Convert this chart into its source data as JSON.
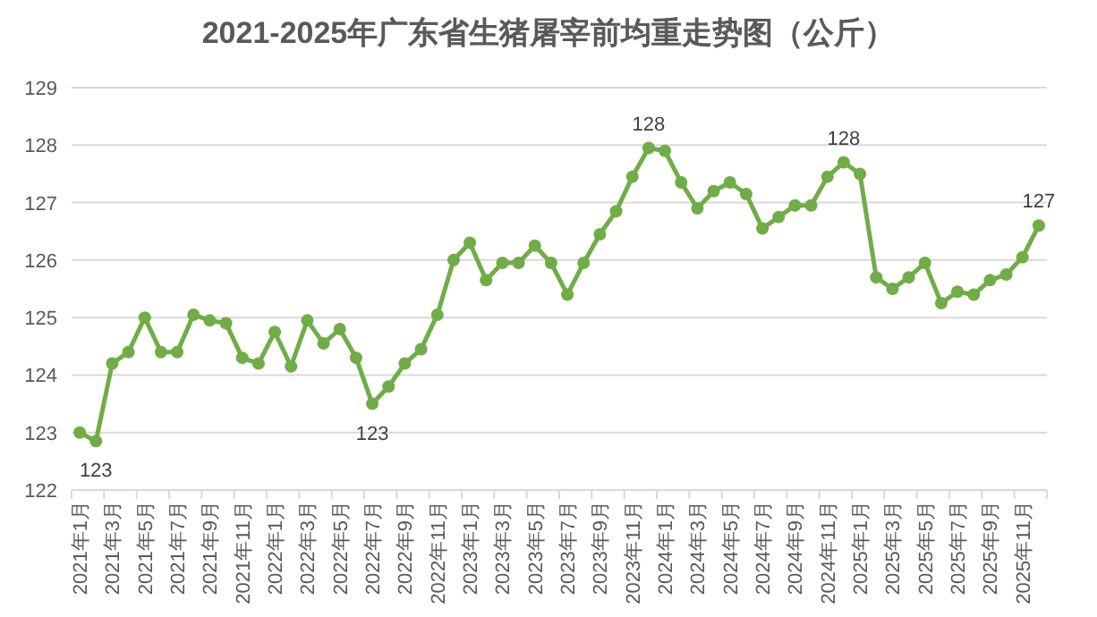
{
  "chart_data": {
    "type": "line",
    "title": "2021-2025年广东省生猪屠宰前均重走势图（公斤）",
    "categories": [
      "2021年1月",
      null,
      "2021年3月",
      null,
      "2021年5月",
      null,
      "2021年7月",
      null,
      "2021年9月",
      null,
      "2021年11月",
      null,
      "2022年1月",
      null,
      "2022年3月",
      null,
      "2022年5月",
      null,
      "2022年7月",
      null,
      "2022年9月",
      null,
      "2022年11月",
      null,
      "2023年1月",
      null,
      "2023年3月",
      null,
      "2023年5月",
      null,
      "2023年7月",
      null,
      "2023年9月",
      null,
      "2023年11月",
      null,
      "2024年1月",
      null,
      "2024年3月",
      null,
      "2024年5月",
      null,
      "2024年7月",
      null,
      "2024年9月",
      null,
      "2024年11月",
      null,
      "2025年1月",
      null,
      "2025年3月",
      null,
      "2025年5月",
      null,
      "2025年7月",
      null,
      "2025年9月",
      null,
      "2025年11月",
      null
    ],
    "series": [
      {
        "color": "#70ad47",
        "values": [
          123.0,
          122.85,
          124.2,
          124.4,
          125.0,
          124.4,
          124.4,
          125.05,
          124.95,
          124.9,
          124.3,
          124.2,
          124.75,
          124.15,
          124.95,
          124.55,
          124.8,
          124.3,
          123.5,
          123.8,
          124.2,
          124.45,
          125.05,
          126.0,
          126.3,
          125.65,
          125.95,
          125.95,
          126.25,
          125.95,
          125.4,
          125.95,
          126.45,
          126.85,
          127.45,
          127.95,
          127.9,
          127.35,
          126.9,
          127.2,
          127.35,
          127.15,
          126.55,
          126.75,
          126.95,
          126.95,
          127.45,
          127.7,
          127.5,
          125.7,
          125.5,
          125.7,
          125.95,
          125.25,
          125.45,
          125.4,
          125.65,
          125.75,
          126.05,
          126.6
        ],
        "value_labels": [
          null,
          "123",
          null,
          null,
          null,
          null,
          null,
          null,
          null,
          null,
          null,
          null,
          null,
          null,
          null,
          null,
          null,
          null,
          "123",
          null,
          null,
          null,
          null,
          null,
          null,
          null,
          null,
          null,
          null,
          null,
          null,
          null,
          null,
          null,
          null,
          "128",
          null,
          null,
          null,
          null,
          null,
          null,
          null,
          null,
          null,
          null,
          null,
          "128",
          null,
          null,
          null,
          null,
          null,
          null,
          null,
          null,
          null,
          null,
          null,
          "127"
        ]
      }
    ],
    "ylim": [
      122,
      129
    ],
    "yticks": [
      122,
      123,
      124,
      125,
      126,
      127,
      128,
      129
    ],
    "grid": "y",
    "marker": "circle",
    "line_style": "solid"
  }
}
